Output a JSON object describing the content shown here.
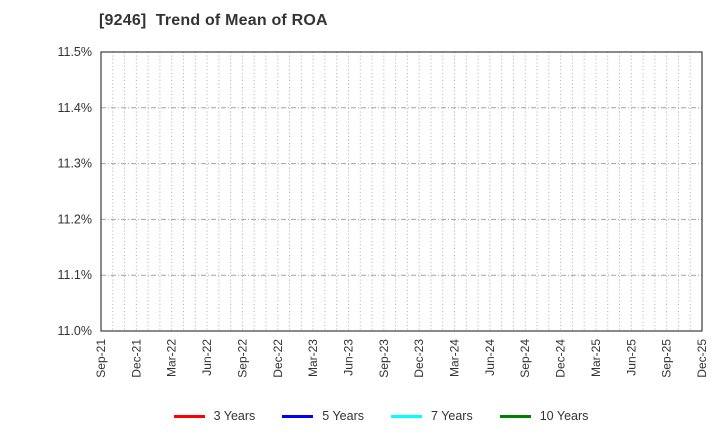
{
  "chart_data": {
    "type": "line",
    "title": "[9246]  Trend of Mean of ROA",
    "xlabel": "",
    "ylabel": "",
    "ylim": [
      11.0,
      11.5
    ],
    "y_ticks": [
      {
        "value": 11.0,
        "label": "11.0%"
      },
      {
        "value": 11.1,
        "label": "11.1%"
      },
      {
        "value": 11.2,
        "label": "11.2%"
      },
      {
        "value": 11.3,
        "label": "11.3%"
      },
      {
        "value": 11.4,
        "label": "11.4%"
      },
      {
        "value": 11.5,
        "label": "11.5%"
      }
    ],
    "x_total_months": 52,
    "x_ticks": [
      {
        "month_index": 0,
        "label": "Sep-21"
      },
      {
        "month_index": 3,
        "label": "Dec-21"
      },
      {
        "month_index": 6,
        "label": "Mar-22"
      },
      {
        "month_index": 9,
        "label": "Jun-22"
      },
      {
        "month_index": 12,
        "label": "Sep-22"
      },
      {
        "month_index": 15,
        "label": "Dec-22"
      },
      {
        "month_index": 18,
        "label": "Mar-23"
      },
      {
        "month_index": 21,
        "label": "Jun-23"
      },
      {
        "month_index": 24,
        "label": "Sep-23"
      },
      {
        "month_index": 27,
        "label": "Dec-23"
      },
      {
        "month_index": 30,
        "label": "Mar-24"
      },
      {
        "month_index": 33,
        "label": "Jun-24"
      },
      {
        "month_index": 36,
        "label": "Sep-24"
      },
      {
        "month_index": 39,
        "label": "Dec-24"
      },
      {
        "month_index": 42,
        "label": "Mar-25"
      },
      {
        "month_index": 45,
        "label": "Jun-25"
      },
      {
        "month_index": 48,
        "label": "Sep-25"
      },
      {
        "month_index": 51,
        "label": "Dec-25"
      }
    ],
    "grid": true,
    "legend_position": "bottom",
    "series": [
      {
        "name": "3 Years",
        "color": "#ff0000",
        "values": []
      },
      {
        "name": "5 Years",
        "color": "#0000ff",
        "values": []
      },
      {
        "name": "7 Years",
        "color": "#00ffff",
        "values": []
      },
      {
        "name": "10 Years",
        "color": "#008000",
        "values": []
      }
    ]
  },
  "style_colors": {
    "title_text": "#333333",
    "tick_text": "#333333",
    "plot_border": "#3c3c3c",
    "grid_major_h": "#a3a3a3",
    "grid_minor_v": "#b0b0b0",
    "background": "#ffffff"
  }
}
